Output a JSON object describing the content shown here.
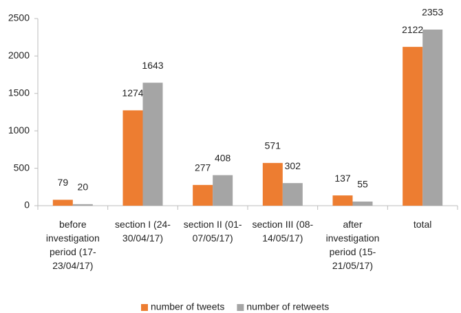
{
  "chart_data": {
    "type": "bar",
    "categories": [
      "before investigation period (17-23/04/17)",
      "section I (24-30/04/17)",
      "section II (01-07/05/17)",
      "section III (08-14/05/17)",
      "after investigation period (15-21/05/17)",
      "total"
    ],
    "series": [
      {
        "name": "number of tweets",
        "color": "#ed7d31",
        "values": [
          79,
          1274,
          277,
          571,
          137,
          2122
        ]
      },
      {
        "name": "number of retweets",
        "color": "#a5a5a5",
        "values": [
          20,
          1643,
          408,
          302,
          55,
          2353
        ]
      }
    ],
    "ylim": [
      0,
      2500
    ],
    "yticks": [
      0,
      500,
      1000,
      1500,
      2000,
      2500
    ],
    "grid": false,
    "legend": "bottom"
  }
}
